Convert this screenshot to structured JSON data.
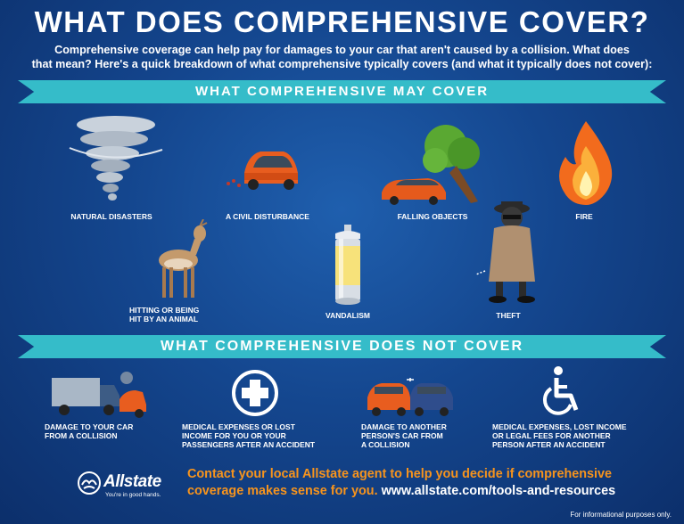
{
  "header": {
    "title": "WHAT DOES COMPREHENSIVE COVER?",
    "intro_line1": "Comprehensive coverage can help pay for damages to your car that aren't caused by a collision. What does",
    "intro_line2": "that mean? Here's a quick breakdown of what comprehensive typically covers (and what it typically does not cover):"
  },
  "may_cover": {
    "heading": "WHAT COMPREHENSIVE MAY COVER",
    "items": [
      {
        "label": "NATURAL DISASTERS",
        "icon": "tornado-icon"
      },
      {
        "label": "A CIVIL DISTURBANCE",
        "icon": "damaged-car-icon"
      },
      {
        "label": "FALLING OBJECTS",
        "icon": "falling-tree-icon"
      },
      {
        "label": "FIRE",
        "icon": "fire-icon"
      },
      {
        "label_line1": "HITTING OR BEING",
        "label_line2": "HIT BY AN ANIMAL",
        "icon": "deer-icon"
      },
      {
        "label": "VANDALISM",
        "icon": "spray-can-icon"
      },
      {
        "label": "THEFT",
        "icon": "thief-icon"
      }
    ]
  },
  "not_cover": {
    "heading": "WHAT COMPREHENSIVE DOES NOT COVER",
    "items": [
      {
        "line1": "DAMAGE TO YOUR CAR",
        "line2": "FROM A COLLISION",
        "icon": "truck-collision-icon"
      },
      {
        "line1": "MEDICAL EXPENSES OR LOST",
        "line2": "INCOME FOR YOU OR YOUR",
        "line3": "PASSENGERS AFTER AN ACCIDENT",
        "icon": "medical-cross-icon"
      },
      {
        "line1": "DAMAGE TO ANOTHER",
        "line2": "PERSON'S CAR FROM",
        "line3": "A COLLISION",
        "icon": "two-cars-collision-icon"
      },
      {
        "line1": "MEDICAL EXPENSES, LOST INCOME",
        "line2": "OR LEGAL FEES FOR ANOTHER",
        "line3": "PERSON AFTER AN ACCIDENT",
        "icon": "wheelchair-icon"
      }
    ]
  },
  "footer": {
    "brand": "Allstate",
    "tagline": "You're in good hands.",
    "cta_line1": "Contact your local Allstate agent to help you decide if comprehensive",
    "cta_line2": "coverage makes sense for you.",
    "url": "www.allstate.com/tools-and-resources",
    "disclaimer": "For informational purposes only."
  },
  "colors": {
    "background": "#14468e",
    "banner": "#35bcc9",
    "cta": "#f7941d",
    "text": "#ffffff"
  }
}
